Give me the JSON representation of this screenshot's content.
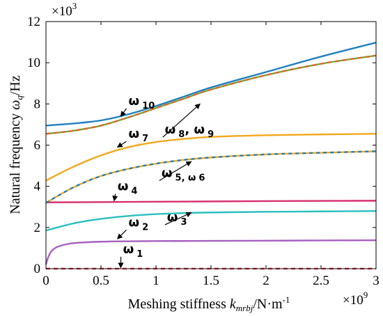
{
  "chart_data": {
    "type": "line",
    "xlabel": {
      "main": "Meshing stiffness ",
      "sym": "k",
      "sub": "mrbj",
      "unit": "/N·m",
      "sup": "-1"
    },
    "ylabel": {
      "main": "Natural frequency ",
      "sym": "ω",
      "sub": "q",
      "unit": "/Hz"
    },
    "x_multiplier": {
      "base": "×10",
      "exp": "9"
    },
    "y_multiplier": {
      "base": "×10",
      "exp": "3"
    },
    "xlim": [
      0,
      3
    ],
    "ylim": [
      0,
      12
    ],
    "xticks": [
      0,
      0.5,
      1,
      1.5,
      2,
      2.5,
      3
    ],
    "xtick_labels": [
      "0",
      "0.5",
      "1",
      "1.5",
      "2",
      "2.5",
      "3"
    ],
    "yticks": [
      0,
      2,
      4,
      6,
      8,
      10,
      12
    ],
    "ytick_labels": [
      "0",
      "2",
      "4",
      "6",
      "8",
      "10",
      "12"
    ],
    "grid": false,
    "series": [
      {
        "color": "#e8344a",
        "dash": "6,5",
        "x": [
          0,
          0.5,
          1,
          1.5,
          2,
          2.5,
          3
        ],
        "y": [
          0,
          0,
          0,
          0,
          0,
          0,
          0
        ]
      },
      {
        "color": "#a65fbf",
        "x": [
          0,
          0.02,
          0.05,
          0.1,
          0.2,
          0.3,
          0.5,
          0.75,
          1,
          1.5,
          2,
          2.5,
          3
        ],
        "y": [
          0.2,
          0.55,
          0.85,
          1.05,
          1.2,
          1.26,
          1.31,
          1.33,
          1.34,
          1.35,
          1.36,
          1.37,
          1.38
        ]
      },
      {
        "color": "#2abfbf",
        "x": [
          0,
          0.25,
          0.5,
          0.75,
          1,
          1.25,
          1.5,
          2,
          2.5,
          3
        ],
        "y": [
          1.85,
          2.2,
          2.42,
          2.56,
          2.65,
          2.7,
          2.73,
          2.76,
          2.78,
          2.8
        ]
      },
      {
        "color": "#d6306e",
        "x": [
          0,
          1,
          2,
          3
        ],
        "y": [
          3.22,
          3.25,
          3.28,
          3.3
        ]
      },
      {
        "color": "#f2a81d",
        "x": [
          0,
          0.25,
          0.5,
          0.75,
          1,
          1.25,
          1.5,
          2,
          2.5,
          3
        ],
        "y": [
          3.2,
          3.95,
          4.5,
          4.85,
          5.1,
          5.28,
          5.4,
          5.55,
          5.63,
          5.7
        ]
      },
      {
        "color": "#1f7fc0",
        "dash": "5,5",
        "x": [
          0,
          0.25,
          0.5,
          0.75,
          1,
          1.25,
          1.5,
          2,
          2.5,
          3
        ],
        "y": [
          3.2,
          3.95,
          4.5,
          4.85,
          5.1,
          5.28,
          5.4,
          5.55,
          5.63,
          5.7
        ]
      },
      {
        "color": "#f2a81d",
        "x": [
          0,
          0.25,
          0.5,
          0.75,
          1,
          1.25,
          1.5,
          2,
          2.5,
          3
        ],
        "y": [
          4.28,
          4.95,
          5.5,
          5.9,
          6.15,
          6.3,
          6.4,
          6.48,
          6.52,
          6.55
        ]
      },
      {
        "color": "#6aaa32",
        "x": [
          0,
          0.25,
          0.5,
          0.75,
          1,
          1.25,
          1.5,
          2,
          2.5,
          3
        ],
        "y": [
          6.55,
          6.7,
          6.95,
          7.35,
          7.8,
          8.25,
          8.7,
          9.4,
          9.95,
          10.35
        ]
      },
      {
        "color": "#e8602a",
        "dash": "6,5",
        "x": [
          0,
          0.25,
          0.5,
          0.75,
          1,
          1.25,
          1.5,
          2,
          2.5,
          3
        ],
        "y": [
          6.55,
          6.7,
          6.95,
          7.35,
          7.8,
          8.25,
          8.7,
          9.4,
          9.95,
          10.35
        ]
      },
      {
        "color": "#1f7fc0",
        "x": [
          0,
          0.25,
          0.5,
          0.75,
          1,
          1.25,
          1.5,
          2,
          2.5,
          3
        ],
        "y": [
          6.95,
          7.05,
          7.2,
          7.5,
          7.9,
          8.35,
          8.8,
          9.55,
          10.3,
          10.98
        ]
      }
    ],
    "annotations": [
      {
        "main": "ω",
        "sub": "1",
        "tx": 0.7,
        "ty": 0.75,
        "px": 0.68,
        "py": 0.05
      },
      {
        "main": "ω",
        "sub": "2",
        "tx": 0.75,
        "ty": 2.05,
        "px": 0.65,
        "py": 1.45
      },
      {
        "main": "ω",
        "sub": "3",
        "tx": 1.1,
        "ty": 2.3,
        "px": 1.32,
        "py": 2.72
      },
      {
        "main": "ω",
        "sub": "4",
        "tx": 0.65,
        "ty": 3.8,
        "px": 0.62,
        "py": 3.3
      },
      {
        "main": "ω",
        "sub": "5, ω",
        "sub2": "6",
        "tx": 1.05,
        "ty": 4.45,
        "px": 1.32,
        "py": 5.2
      },
      {
        "main": "ω",
        "sub": "7",
        "tx": 0.75,
        "ty": 6.35,
        "px": 0.65,
        "py": 5.9
      },
      {
        "main": "ω",
        "sub": "8",
        "mid": ", ω",
        "sub2": "9",
        "tx": 1.08,
        "ty": 6.55,
        "px": 1.4,
        "py": 8.0
      },
      {
        "main": "ω",
        "sub": "10",
        "tx": 0.75,
        "ty": 7.95,
        "px": 0.68,
        "py": 7.4
      }
    ]
  }
}
